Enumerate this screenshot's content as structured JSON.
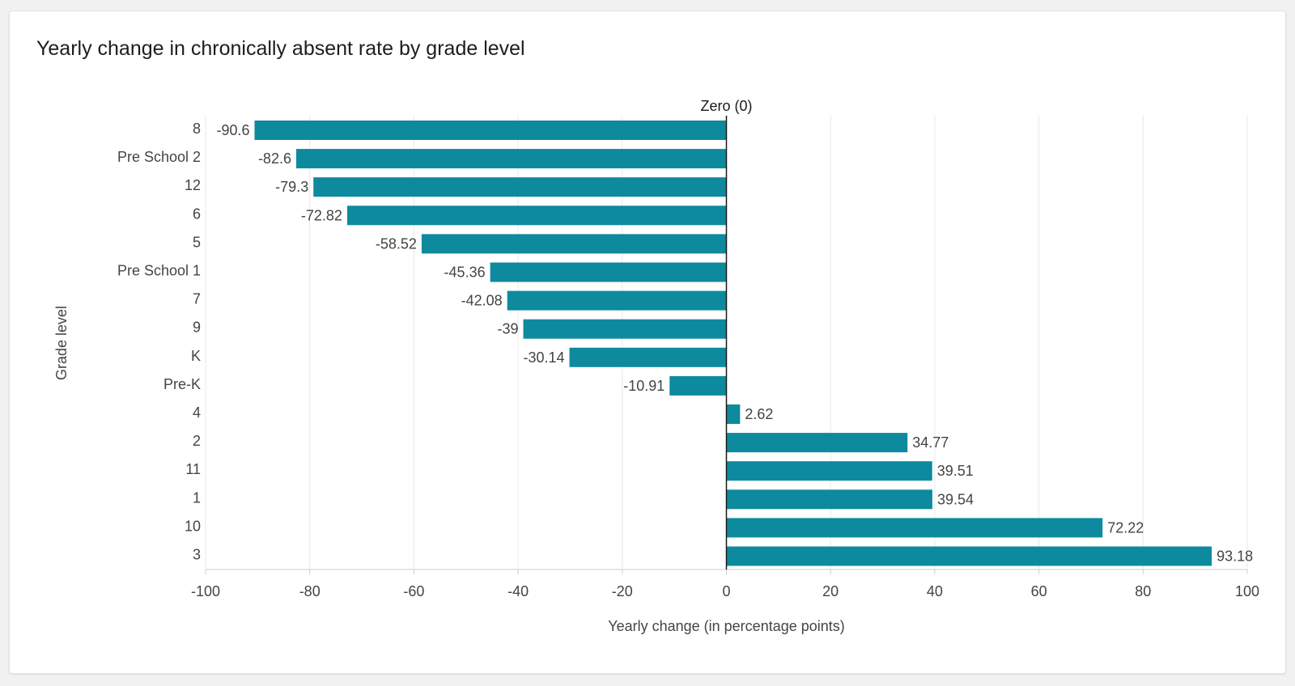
{
  "chart_data": {
    "type": "bar",
    "orientation": "horizontal",
    "title": "Yearly change in chronically absent rate by grade level",
    "xlabel": "Yearly change (in percentage points)",
    "ylabel": "Grade level",
    "xlim": [
      -100,
      100
    ],
    "xticks": [
      -100,
      -80,
      -60,
      -40,
      -20,
      0,
      20,
      40,
      60,
      80,
      100
    ],
    "grid": true,
    "reference_line": {
      "value": 0,
      "label": "Zero (0)"
    },
    "categories": [
      "8",
      "Pre School 2",
      "12",
      "6",
      "5",
      "Pre School 1",
      "7",
      "9",
      "K",
      "Pre-K",
      "4",
      "2",
      "11",
      "1",
      "10",
      "3"
    ],
    "values": [
      -90.6,
      -82.6,
      -79.3,
      -72.82,
      -58.52,
      -45.36,
      -42.08,
      -39,
      -30.14,
      -10.91,
      2.62,
      34.77,
      39.51,
      39.54,
      72.22,
      93.18
    ],
    "data_labels": [
      "-90.6",
      "-82.6",
      "-79.3",
      "-72.82",
      "-58.52",
      "-45.36",
      "-42.08",
      "-39",
      "-30.14",
      "-10.91",
      "2.62",
      "34.77",
      "39.51",
      "39.54",
      "72.22",
      "93.18"
    ],
    "bar_color": "#0e8a9e"
  }
}
